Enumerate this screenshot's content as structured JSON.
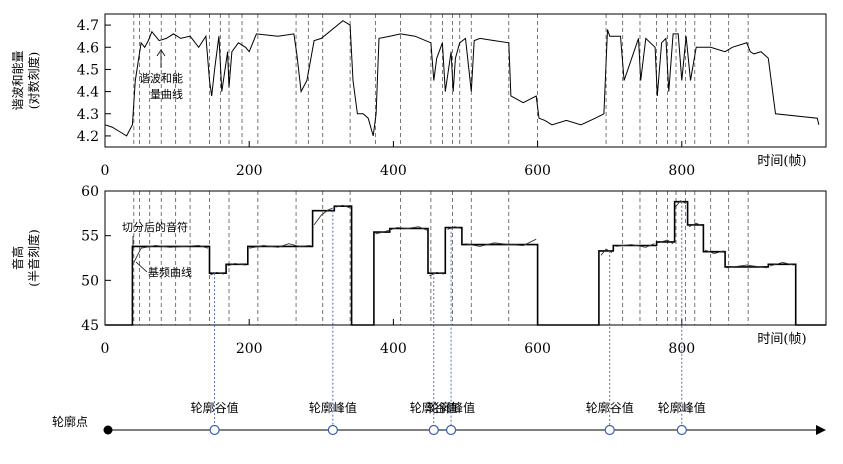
{
  "chart_data": [
    {
      "type": "line",
      "ylabel_lines": [
        "谐波和能量",
        "(对数刻度)"
      ],
      "xlabel": "时间(帧)",
      "xlim": [
        0,
        1000
      ],
      "ylim": [
        4.15,
        4.75
      ],
      "xticks": [
        0,
        200,
        400,
        600,
        800
      ],
      "xtick_labels": [
        "0",
        "200",
        "400",
        "600",
        "800"
      ],
      "yticks": [
        4.2,
        4.3,
        4.4,
        4.5,
        4.6,
        4.7
      ],
      "ytick_labels": [
        "4.2",
        "4.3",
        "4.4",
        "4.5",
        "4.6",
        "4.7"
      ],
      "annotation_lines": [
        "谐波和能",
        "量曲线"
      ],
      "segment_boundaries": [
        40,
        48,
        62,
        78,
        98,
        118,
        145,
        160,
        172,
        190,
        212,
        265,
        282,
        302,
        340,
        375,
        410,
        452,
        468,
        482,
        492,
        508,
        560,
        600,
        695,
        718,
        742,
        765,
        780,
        792,
        805,
        818,
        840,
        865,
        892
      ],
      "series": [
        {
          "x": [
            0,
            10,
            20,
            30,
            38,
            42,
            50,
            55,
            60,
            65,
            75,
            85,
            95,
            105,
            118,
            130,
            140,
            145,
            148,
            152,
            158,
            162,
            170,
            172,
            176,
            185,
            195,
            200,
            210,
            240,
            262,
            266,
            272,
            280,
            290,
            300,
            330,
            340,
            344,
            350,
            358,
            365,
            372,
            376,
            380,
            395,
            410,
            430,
            452,
            456,
            460,
            468,
            472,
            480,
            483,
            486,
            492,
            500,
            508,
            512,
            520,
            540,
            560,
            563,
            580,
            598,
            602,
            610,
            620,
            640,
            660,
            680,
            692,
            697,
            700,
            715,
            720,
            740,
            743,
            750,
            763,
            766,
            772,
            778,
            782,
            788,
            795,
            800,
            806,
            812,
            820,
            840,
            860,
            870,
            890,
            895,
            900,
            910,
            920,
            930,
            988,
            990
          ],
          "values": [
            4.25,
            4.24,
            4.22,
            4.2,
            4.25,
            4.45,
            4.62,
            4.6,
            4.63,
            4.67,
            4.63,
            4.64,
            4.66,
            4.64,
            4.65,
            4.6,
            4.65,
            4.45,
            4.38,
            4.5,
            4.65,
            4.4,
            4.58,
            4.42,
            4.58,
            4.62,
            4.6,
            4.58,
            4.66,
            4.65,
            4.66,
            4.57,
            4.4,
            4.45,
            4.63,
            4.64,
            4.72,
            4.7,
            4.45,
            4.3,
            4.3,
            4.28,
            4.2,
            4.3,
            4.64,
            4.65,
            4.66,
            4.65,
            4.62,
            4.45,
            4.55,
            4.62,
            4.4,
            4.58,
            4.4,
            4.55,
            4.62,
            4.64,
            4.4,
            4.63,
            4.64,
            4.63,
            4.62,
            4.38,
            4.35,
            4.38,
            4.28,
            4.27,
            4.25,
            4.27,
            4.25,
            4.28,
            4.3,
            4.68,
            4.65,
            4.65,
            4.45,
            4.64,
            4.45,
            4.64,
            4.6,
            4.38,
            4.62,
            4.64,
            4.4,
            4.66,
            4.66,
            4.45,
            4.65,
            4.45,
            4.6,
            4.6,
            4.58,
            4.6,
            4.62,
            4.58,
            4.57,
            4.58,
            4.55,
            4.3,
            4.28,
            4.25
          ]
        }
      ]
    },
    {
      "type": "line",
      "ylabel_lines": [
        "音高",
        "(半音刻度)"
      ],
      "xlabel": "时间(帧)",
      "xlim": [
        0,
        1000
      ],
      "ylim": [
        45,
        60
      ],
      "xticks": [
        0,
        200,
        400,
        600,
        800
      ],
      "xtick_labels": [
        "0",
        "200",
        "400",
        "600",
        "800"
      ],
      "yticks": [
        45,
        50,
        55,
        60
      ],
      "ytick_labels": [
        "45",
        "50",
        "55",
        "60"
      ],
      "annotation_notes": "切分后的音符",
      "annotation_pitch": "基频曲线",
      "segment_boundaries": [
        40,
        48,
        62,
        78,
        98,
        118,
        145,
        172,
        212,
        265,
        302,
        340,
        410,
        452,
        482,
        508,
        560,
        718,
        742,
        765,
        780,
        792,
        805,
        818,
        840,
        865,
        892
      ],
      "notes": [
        {
          "x0": 0,
          "x1": 38,
          "value": 45
        },
        {
          "x0": 38,
          "x1": 145,
          "value": 53.8
        },
        {
          "x0": 145,
          "x1": 168,
          "value": 50.8
        },
        {
          "x0": 168,
          "x1": 198,
          "value": 51.8
        },
        {
          "x0": 198,
          "x1": 288,
          "value": 53.8
        },
        {
          "x0": 288,
          "x1": 318,
          "value": 57.8
        },
        {
          "x0": 318,
          "x1": 342,
          "value": 58.3
        },
        {
          "x0": 342,
          "x1": 373,
          "value": 45
        },
        {
          "x0": 373,
          "x1": 395,
          "value": 55.4
        },
        {
          "x0": 395,
          "x1": 448,
          "value": 55.8
        },
        {
          "x0": 448,
          "x1": 472,
          "value": 50.8
        },
        {
          "x0": 472,
          "x1": 495,
          "value": 55.9
        },
        {
          "x0": 495,
          "x1": 600,
          "value": 54
        },
        {
          "x0": 600,
          "x1": 685,
          "value": 45
        },
        {
          "x0": 685,
          "x1": 705,
          "value": 53.3
        },
        {
          "x0": 705,
          "x1": 765,
          "value": 53.9
        },
        {
          "x0": 765,
          "x1": 790,
          "value": 54.3
        },
        {
          "x0": 790,
          "x1": 808,
          "value": 58.8
        },
        {
          "x0": 808,
          "x1": 830,
          "value": 56.2
        },
        {
          "x0": 830,
          "x1": 860,
          "value": 53.2
        },
        {
          "x0": 860,
          "x1": 920,
          "value": 51.5
        },
        {
          "x0": 920,
          "x1": 958,
          "value": 51.8
        },
        {
          "x0": 958,
          "x1": 1000,
          "value": 45
        }
      ],
      "pitch_segments": [
        {
          "x": [
            40,
            50,
            70,
            90,
            110,
            130,
            143
          ],
          "values": [
            52,
            53.6,
            53.9,
            53.7,
            53.8,
            53.9,
            53.6
          ]
        },
        {
          "x": [
            146,
            155,
            165
          ],
          "values": [
            50.6,
            50.9,
            50.7
          ]
        },
        {
          "x": [
            170,
            180,
            195
          ],
          "values": [
            51.6,
            51.9,
            51.7
          ]
        },
        {
          "x": [
            200,
            220,
            240,
            255,
            270,
            285
          ],
          "values": [
            53.6,
            53.9,
            53.7,
            54.1,
            53.8,
            53.9
          ]
        },
        {
          "x": [
            290,
            300,
            310,
            316
          ],
          "values": [
            56.2,
            57.3,
            57.9,
            58.1
          ]
        },
        {
          "x": [
            320,
            330,
            340
          ],
          "values": [
            58.2,
            58.4,
            58.1
          ]
        },
        {
          "x": [
            375,
            390,
            405,
            420,
            435,
            447
          ],
          "values": [
            55.2,
            55.5,
            55.9,
            55.8,
            56,
            55.6
          ]
        },
        {
          "x": [
            450,
            460,
            470
          ],
          "values": [
            50.5,
            50.9,
            50.7
          ]
        },
        {
          "x": [
            475,
            485,
            494
          ],
          "values": [
            55.7,
            56,
            55.8
          ]
        },
        {
          "x": [
            500,
            520,
            540,
            560,
            580,
            598
          ],
          "values": [
            54.1,
            53.8,
            54.2,
            54,
            53.9,
            54.6
          ]
        },
        {
          "x": [
            688,
            695,
            703
          ],
          "values": [
            52.8,
            53.5,
            53.1
          ]
        },
        {
          "x": [
            708,
            730,
            750,
            762
          ],
          "values": [
            53.8,
            54,
            53.7,
            54.1
          ]
        },
        {
          "x": [
            767,
            780,
            788
          ],
          "values": [
            54.2,
            54.5,
            54.1
          ]
        },
        {
          "x": [
            791,
            798,
            806
          ],
          "values": [
            58.2,
            58.9,
            58.6
          ]
        },
        {
          "x": [
            810,
            820,
            828
          ],
          "values": [
            56,
            56.4,
            56.1
          ]
        },
        {
          "x": [
            832,
            845,
            858
          ],
          "values": [
            53.4,
            53,
            53.3
          ]
        },
        {
          "x": [
            862,
            890,
            918
          ],
          "values": [
            51.4,
            51.7,
            51.4
          ]
        },
        {
          "x": [
            922,
            940,
            955
          ],
          "values": [
            51.6,
            52,
            51.7
          ]
        }
      ]
    }
  ],
  "contour_axis": {
    "label": "轮廓点",
    "points": [
      {
        "x": 152,
        "label": "轮廓谷值"
      },
      {
        "x": 316,
        "label": "轮廓峰值"
      },
      {
        "x": 456,
        "label": "轮廓谷值"
      },
      {
        "x": 480,
        "label": "轮廓峰值"
      },
      {
        "x": 700,
        "label": "轮廓谷值"
      },
      {
        "x": 800,
        "label": "轮廓峰值"
      }
    ]
  }
}
